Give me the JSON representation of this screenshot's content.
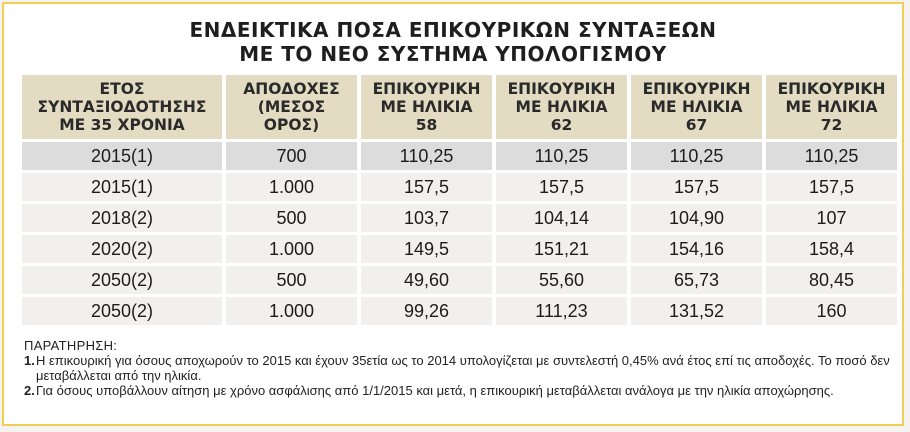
{
  "title": {
    "line1": "ΕΝΔΕΙΚΤΙΚΑ ΠΟΣΑ ΕΠΙΚΟΥΡΙΚΩΝ ΣΥΝΤΑΞΕΩΝ",
    "line2": "ΜΕ ΤΟ ΝΕΟ ΣΥΣΤΗΜΑ ΥΠΟΛΟΓΙΣΜΟΥ"
  },
  "headers": [
    {
      "l1": "ΕΤΟΣ",
      "l2": "ΣΥΝΤΑΞΙΟΔΟΤΗΣΗΣ",
      "l3": "ΜΕ 35 ΧΡΟΝΙΑ",
      "l4": ""
    },
    {
      "l1": "ΑΠΟΔΟΧΕΣ",
      "l2": "(ΜΕΣΟΣ",
      "l3": "ΟΡΟΣ)",
      "l4": ""
    },
    {
      "l1": "ΕΠΙΚΟΥΡΙΚΗ",
      "l2": "ΜΕ ΗΛΙΚΙΑ",
      "l3": "58",
      "l4": ""
    },
    {
      "l1": "ΕΠΙΚΟΥΡΙΚΗ",
      "l2": "ΜΕ ΗΛΙΚΙΑ",
      "l3": "62",
      "l4": ""
    },
    {
      "l1": "ΕΠΙΚΟΥΡΙΚΗ",
      "l2": "ΜΕ ΗΛΙΚΙΑ",
      "l3": "67",
      "l4": ""
    },
    {
      "l1": "ΕΠΙΚΟΥΡΙΚΗ",
      "l2": "ΜΕ ΗΛΙΚΙΑ",
      "l3": "72",
      "l4": ""
    }
  ],
  "rows": [
    [
      "2015(1)",
      "700",
      "110,25",
      "110,25",
      "110,25",
      "110,25"
    ],
    [
      "2015(1)",
      "1.000",
      "157,5",
      "157,5",
      "157,5",
      "157,5"
    ],
    [
      "2018(2)",
      "500",
      "103,7",
      "104,14",
      "104,90",
      "107"
    ],
    [
      "2020(2)",
      "1.000",
      "149,5",
      "151,21",
      "154,16",
      "158,4"
    ],
    [
      "2050(2)",
      "500",
      "49,60",
      "55,60",
      "65,73",
      "80,45"
    ],
    [
      "2050(2)",
      "1.000",
      "99,26",
      "111,23",
      "131,52",
      "160"
    ]
  ],
  "notes": {
    "heading": "ΠΑΡΑΤΗΡΗΣΗ:",
    "items": [
      {
        "num": "1.",
        "text": "Η επικουρική για όσους αποχωρούν το 2015 και έχουν 35ετία ως το 2014 υπολογίζεται με συντελεστή 0,45% ανά έτος επί τις αποδοχές. Το ποσό δεν μεταβάλλεται από την ηλικία."
      },
      {
        "num": "2.",
        "text": "Για όσους υποβάλλουν αίτηση με χρόνο ασφάλισης από 1/1/2015 και μετά, η επικουρική μεταβάλλεται ανάλογα με την ηλικία αποχώρησης."
      }
    ]
  },
  "colors": {
    "border": "#f1cf55",
    "header_bg": "#e3dcc3",
    "cell_bg": "#f1f0ee",
    "shaded_row_bg": "#dcdcdc"
  }
}
